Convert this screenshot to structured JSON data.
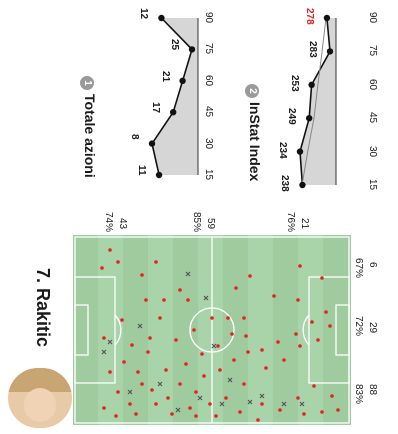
{
  "player": {
    "name": "7. Rakitic",
    "avatar_icon": "player-photo"
  },
  "pitch": {
    "background_color": "#a9d4a9",
    "line_color": "#ffffff",
    "third_totals": [
      "43",
      "59",
      "21"
    ],
    "third_percents": [
      "74%",
      "85%",
      "76%"
    ],
    "band_totals": [
      "6",
      "29",
      "88"
    ],
    "band_percents": [
      "67%",
      "72%",
      "83%"
    ],
    "successful_color": "#e32222",
    "unsuccessful_color": "#555555"
  },
  "chart1": {
    "badge": "1",
    "title": "Totale azioni",
    "x_ticks": [
      "15",
      "30",
      "45",
      "60",
      "75",
      "90"
    ],
    "chart_data": {
      "type": "line",
      "x": [
        15,
        30,
        45,
        60,
        75,
        90
      ],
      "values": [
        11,
        8,
        17,
        21,
        25,
        12
      ],
      "data_labels": [
        "11",
        "8",
        "17",
        "21",
        "25",
        "12"
      ],
      "xlim": [
        15,
        90
      ]
    }
  },
  "chart2": {
    "badge": "2",
    "title": "InStat Index",
    "x_ticks": [
      "15",
      "30",
      "45",
      "60",
      "75",
      "90"
    ],
    "highlight_color": "#e32222",
    "chart_data": {
      "type": "line",
      "x": [
        15,
        30,
        45,
        60,
        75,
        90
      ],
      "values": [
        238,
        234,
        249,
        253,
        283,
        278
      ],
      "data_labels": [
        "238",
        "234",
        "249",
        "253",
        "283",
        "278"
      ],
      "xlim": [
        15,
        90
      ]
    }
  }
}
